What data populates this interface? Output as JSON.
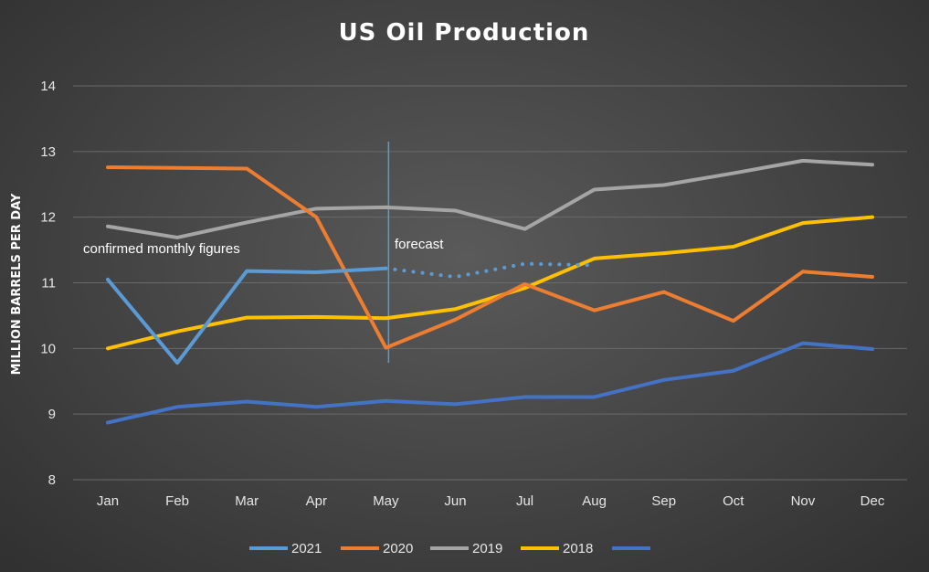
{
  "chart_data": {
    "type": "line",
    "title": "US Oil Production",
    "xlabel": "",
    "ylabel": "MILLION BARRELS PER DAY",
    "ylim": [
      8,
      14
    ],
    "yticks": [
      8,
      9,
      10,
      11,
      12,
      13,
      14
    ],
    "categories": [
      "Jan",
      "Feb",
      "Mar",
      "Apr",
      "May",
      "Jun",
      "Jul",
      "Aug",
      "Sep",
      "Oct",
      "Nov",
      "Dec"
    ],
    "grid": true,
    "legend_position": "bottom",
    "series": [
      {
        "name": "2021",
        "color": "#5b9bd5",
        "values": [
          11.05,
          9.78,
          11.18,
          11.16,
          11.22,
          null,
          null,
          null,
          null,
          null,
          null,
          null
        ],
        "forecast_values": [
          null,
          null,
          null,
          null,
          11.22,
          11.09,
          11.29,
          11.27,
          null,
          null,
          null,
          null
        ]
      },
      {
        "name": "2020",
        "color": "#ed7d31",
        "values": [
          12.76,
          12.75,
          12.74,
          12.0,
          10.01,
          10.44,
          10.98,
          10.58,
          10.86,
          10.42,
          11.17,
          11.09
        ]
      },
      {
        "name": "2019",
        "color": "#a5a5a5",
        "values": [
          11.86,
          11.69,
          11.92,
          12.13,
          12.15,
          12.1,
          11.82,
          12.42,
          12.49,
          12.67,
          12.86,
          12.8
        ]
      },
      {
        "name": "2018",
        "color": "#ffc000",
        "values": [
          10.0,
          10.26,
          10.47,
          10.48,
          10.46,
          10.6,
          10.92,
          11.37,
          11.45,
          11.55,
          11.91,
          12.0
        ]
      },
      {
        "name": "",
        "color": "#4472c4",
        "values": [
          8.87,
          9.11,
          9.19,
          9.11,
          9.2,
          9.15,
          9.26,
          9.26,
          9.52,
          9.66,
          10.08,
          9.99
        ]
      }
    ],
    "vline_category": "May",
    "annotations": [
      {
        "text": "confirmed monthly figures"
      },
      {
        "text": "forecast"
      }
    ]
  }
}
